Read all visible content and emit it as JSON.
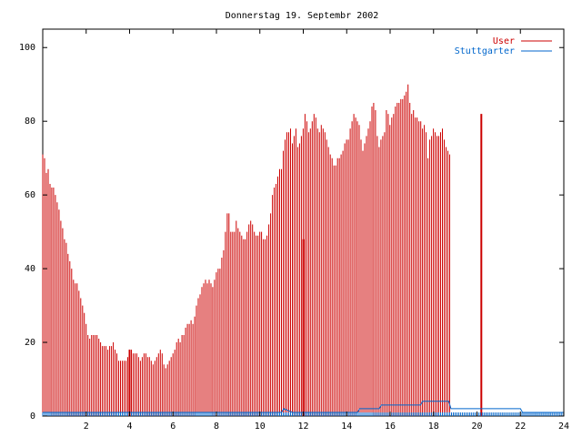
{
  "chart_data": {
    "type": "bar",
    "title": "Donnerstag 19. Septembr 2002",
    "xlim": [
      0,
      24
    ],
    "ylim": [
      0,
      105
    ],
    "x_ticks": [
      2,
      4,
      6,
      8,
      10,
      12,
      14,
      16,
      18,
      20,
      22,
      24
    ],
    "y_ticks": [
      0,
      20,
      40,
      60,
      80,
      100
    ],
    "legend_position": "top-right",
    "grid": false,
    "series": [
      {
        "name": "User",
        "color": "#cc0000",
        "x_start": 0,
        "x_step": 0.0833,
        "values": [
          71,
          70,
          66,
          67,
          63,
          62,
          62,
          60,
          58,
          56,
          53,
          51,
          48,
          47,
          44,
          42,
          40,
          37,
          36,
          36,
          34,
          32,
          30,
          28,
          25,
          22,
          21,
          22,
          22,
          22,
          22,
          21,
          20,
          19,
          19,
          19,
          18,
          19,
          19,
          20,
          18,
          17,
          15,
          15,
          15,
          15,
          15,
          16,
          18,
          18,
          17,
          17,
          17,
          16,
          15,
          16,
          17,
          17,
          16,
          16,
          15,
          14,
          15,
          16,
          17,
          18,
          17,
          14,
          13,
          14,
          15,
          16,
          17,
          18,
          20,
          21,
          20,
          22,
          22,
          24,
          25,
          25,
          26,
          25,
          27,
          30,
          32,
          33,
          35,
          36,
          37,
          36,
          37,
          36,
          35,
          37,
          39,
          40,
          40,
          43,
          45,
          50,
          55,
          55,
          50,
          50,
          50,
          53,
          51,
          50,
          49,
          48,
          48,
          50,
          52,
          53,
          52,
          50,
          49,
          49,
          50,
          50,
          48,
          48,
          49,
          52,
          55,
          60,
          62,
          63,
          65,
          67,
          67,
          72,
          75,
          77,
          77,
          78,
          74,
          76,
          78,
          73,
          74,
          76,
          78,
          82,
          80,
          77,
          78,
          80,
          82,
          81,
          78,
          77,
          79,
          78,
          77,
          75,
          73,
          71,
          70,
          68,
          68,
          70,
          70,
          71,
          72,
          74,
          75,
          75,
          78,
          80,
          82,
          81,
          80,
          79,
          75,
          72,
          74,
          76,
          78,
          80,
          84,
          85,
          83,
          76,
          73,
          75,
          76,
          77,
          83,
          82,
          79,
          81,
          82,
          84,
          85,
          85,
          86,
          86,
          87,
          88,
          90,
          85,
          82,
          83,
          81,
          81,
          80,
          80,
          78,
          79,
          77,
          70,
          75,
          76,
          78,
          77,
          76,
          76,
          77,
          78,
          75,
          73,
          72,
          71
        ]
      },
      {
        "name": "Stuttgarter",
        "color": "#0066cc",
        "x_start": 0,
        "x_step": 0.0833,
        "values": [
          1,
          1,
          1,
          1,
          1,
          1,
          1,
          1,
          1,
          1,
          1,
          1,
          1,
          1,
          1,
          1,
          1,
          1,
          1,
          1,
          1,
          1,
          1,
          1,
          1,
          1,
          1,
          1,
          1,
          1,
          1,
          1,
          1,
          1,
          1,
          1,
          1,
          1,
          1,
          1,
          1,
          1,
          1,
          1,
          1,
          1,
          1,
          1,
          1,
          1,
          1,
          1,
          1,
          1,
          1,
          1,
          1,
          1,
          1,
          1,
          1,
          1,
          1,
          1,
          1,
          1,
          1,
          1,
          1,
          1,
          1,
          1,
          1,
          1,
          1,
          1,
          1,
          1,
          1,
          1,
          1,
          1,
          1,
          1,
          1,
          1,
          1,
          1,
          1,
          1,
          1,
          1,
          1,
          1,
          1,
          1,
          1,
          1,
          1,
          1,
          1,
          1,
          1,
          1,
          1,
          1,
          1,
          1,
          1,
          1,
          1,
          1,
          1,
          1,
          1,
          1,
          1,
          1,
          1,
          1,
          1,
          1,
          1,
          1,
          1,
          1,
          1,
          1,
          1,
          1,
          1,
          1,
          1,
          1,
          1,
          1,
          1,
          1,
          1,
          1,
          1,
          1,
          1,
          1,
          1,
          1,
          1,
          1,
          1,
          1,
          1,
          1,
          1,
          1,
          1,
          1,
          1,
          1,
          1,
          1,
          1,
          1,
          1,
          1,
          1,
          1,
          1,
          1,
          1,
          1,
          1,
          1,
          1,
          1,
          1,
          1,
          1,
          1,
          1,
          1,
          1,
          1,
          1,
          1,
          1,
          1,
          1,
          1,
          1,
          1,
          1,
          1,
          1,
          1,
          1,
          1,
          1,
          1,
          1,
          1,
          1,
          1,
          1,
          1,
          1,
          1,
          1,
          1,
          1,
          1,
          1,
          1,
          1,
          1,
          1,
          1,
          1,
          1,
          1,
          1,
          1,
          1,
          1,
          1,
          1,
          1,
          1,
          1,
          1,
          1,
          1,
          1,
          1,
          1,
          1,
          1,
          1,
          1,
          1,
          1,
          1,
          1,
          1,
          1,
          1,
          1,
          1,
          1,
          1,
          1,
          1,
          1,
          1,
          1,
          1,
          1,
          1,
          1,
          1,
          1,
          1,
          1,
          1,
          1,
          1,
          1,
          1,
          1,
          1,
          1,
          1,
          1,
          1,
          1,
          1,
          1,
          1,
          1,
          1,
          1,
          1,
          1,
          1,
          1,
          1,
          1,
          1,
          1,
          1,
          1,
          1,
          1,
          1,
          1,
          1,
          1,
          1,
          1,
          1,
          1,
          1,
          1,
          1,
          1,
          1,
          1,
          1,
          1
        ]
      }
    ],
    "spikes": [
      {
        "series": "User",
        "x": 4.0,
        "value": 18
      },
      {
        "series": "User",
        "x": 12.0,
        "value": 48
      },
      {
        "series": "User",
        "x": 20.2,
        "value": 82
      }
    ],
    "step_line": [
      {
        "x": 0,
        "value": 1
      },
      {
        "x": 11.0,
        "value": 1
      },
      {
        "x": 11.1,
        "value": 2
      },
      {
        "x": 11.5,
        "value": 1
      },
      {
        "x": 14.5,
        "value": 1
      },
      {
        "x": 14.6,
        "value": 2
      },
      {
        "x": 15.5,
        "value": 2
      },
      {
        "x": 15.6,
        "value": 3
      },
      {
        "x": 17.4,
        "value": 3
      },
      {
        "x": 17.5,
        "value": 4
      },
      {
        "x": 18.7,
        "value": 4
      },
      {
        "x": 18.8,
        "value": 2
      },
      {
        "x": 22.0,
        "value": 2
      },
      {
        "x": 22.1,
        "value": 1
      },
      {
        "x": 24,
        "value": 1
      }
    ]
  }
}
